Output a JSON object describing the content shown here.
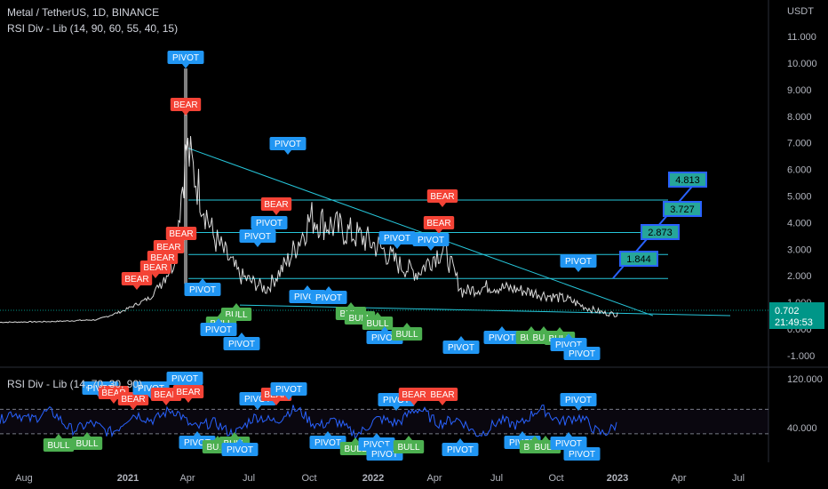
{
  "header": {
    "symbol_line": "Metal / TetherUS, 1D, BINANCE",
    "indicator_main": "RSI Div - Lib (14, 90, 60, 55, 40, 15)",
    "indicator_sub": "RSI Div - Lib (14, 70, 30, 90)"
  },
  "colors": {
    "background": "#000000",
    "price_line": "#ffffff",
    "trend_line": "#26c6da",
    "pivot": "#2196f3",
    "bear": "#f44336",
    "bull": "#4caf50",
    "rsi_line": "#2962ff",
    "target_box": "#26a69a",
    "price_tag": "#009688"
  },
  "chart_data": [
    {
      "type": "line",
      "title": "Metal / TetherUS, 1D, BINANCE",
      "unit": "USDT",
      "ylim": [
        -1.5,
        12
      ],
      "y_ticks": [
        "11.000",
        "10.000",
        "9.000",
        "8.000",
        "7.000",
        "6.000",
        "5.000",
        "4.000",
        "3.000",
        "2.000",
        "1.000",
        "0.000",
        "-1.000"
      ],
      "x_ticks": [
        "Aug",
        "2021",
        "Apr",
        "Jul",
        "Oct",
        "2022",
        "Apr",
        "Jul",
        "Oct",
        "2023",
        "Apr",
        "Jul"
      ],
      "x": [
        "2020-08",
        "2020-10",
        "2020-12",
        "2021-01",
        "2021-02",
        "2021-03",
        "2021-04",
        "2021-05",
        "2021-06",
        "2021-07",
        "2021-08",
        "2021-09",
        "2021-10",
        "2021-11",
        "2021-12",
        "2022-01",
        "2022-02",
        "2022-03",
        "2022-04",
        "2022-05",
        "2022-06",
        "2022-07",
        "2022-08",
        "2022-09",
        "2022-10",
        "2022-11",
        "2022-12"
      ],
      "series": [
        {
          "values": [
            0.25,
            0.28,
            0.35,
            0.7,
            1.2,
            2.5,
            6.8,
            3.5,
            2.0,
            1.5,
            2.6,
            4.2,
            3.8,
            3.4,
            3.0,
            2.4,
            2.1,
            2.8,
            3.0,
            1.4,
            1.6,
            1.5,
            1.3,
            1.1,
            0.8,
            0.6,
            0.55
          ]
        }
      ],
      "last_price": "0.702",
      "countdown": "21:49:53",
      "target_levels": [
        "1.844",
        "2.873",
        "3.727",
        "4.813"
      ],
      "pivot_label": "PIVOT",
      "bear_label": "BEAR",
      "bull_label": "BULL"
    },
    {
      "type": "line",
      "title": "RSI Div - Lib (14, 70, 30, 90)",
      "ylim": [
        10,
        125
      ],
      "y_ticks": [
        "120.000",
        "40.000"
      ],
      "reference_lines": [
        70,
        30
      ]
    }
  ]
}
